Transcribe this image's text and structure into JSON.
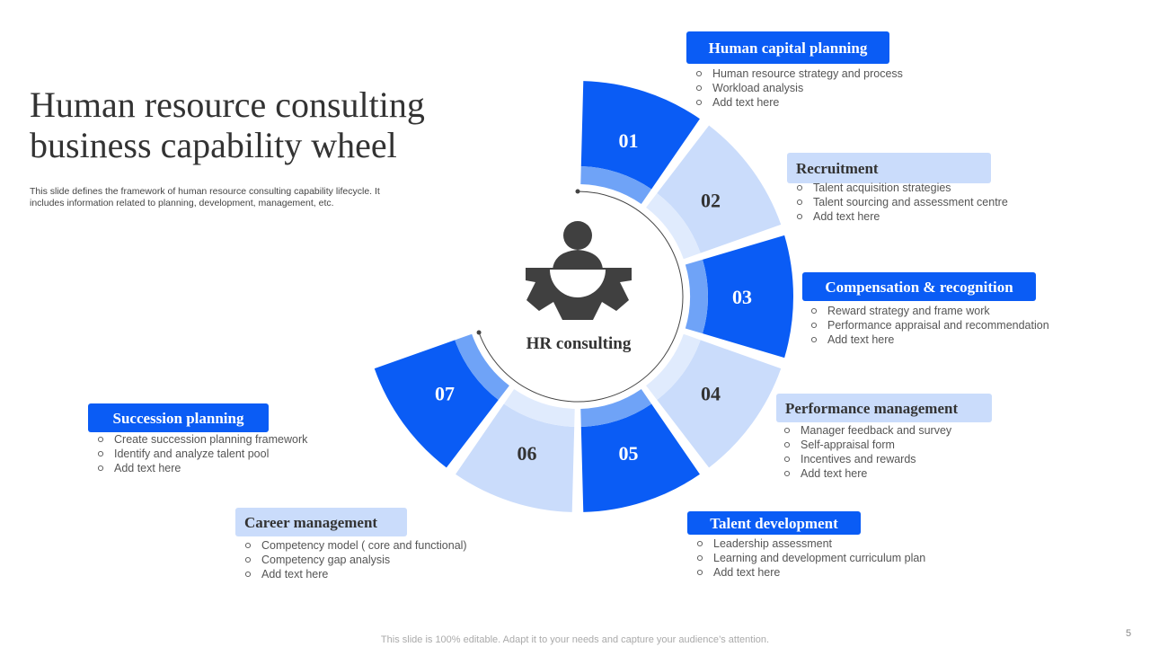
{
  "title": [
    "Human resource consulting",
    "business capability wheel"
  ],
  "subtitle": [
    "This slide defines the framework of human resource consulting capability lifecycle. It",
    "includes information related to planning, development, management, etc."
  ],
  "center_label": "HR consulting",
  "segments": [
    {
      "number": "01",
      "heading": "Human capital planning",
      "items": [
        "Human resource strategy and process",
        "Workload analysis",
        "Add text here"
      ]
    },
    {
      "number": "02",
      "heading": "Recruitment",
      "items": [
        "Talent acquisition strategies",
        "Talent sourcing and assessment centre",
        "Add text here"
      ]
    },
    {
      "number": "03",
      "heading": "Compensation & recognition",
      "items": [
        "Reward strategy and frame work",
        "Performance appraisal and recommendation",
        "Add text here"
      ]
    },
    {
      "number": "04",
      "heading": "Performance management",
      "items": [
        "Manager feedback and survey",
        "Self-appraisal form",
        "Incentives and rewards",
        "Add text here"
      ]
    },
    {
      "number": "05",
      "heading": "Talent development",
      "items": [
        "Leadership assessment",
        "Learning and development curriculum plan",
        "Add text here"
      ]
    },
    {
      "number": "06",
      "heading": "Career management",
      "items": [
        "Competency model ( core and functional)",
        "Competency gap analysis",
        "Add text here"
      ]
    },
    {
      "number": "07",
      "heading": "Succession planning",
      "items": [
        "Create succession planning framework",
        "Identify and analyze talent pool",
        "Add text here"
      ]
    }
  ],
  "footer": "This slide is 100% editable. Adapt it to your needs and capture your audience’s attention.",
  "page_number": "5"
}
